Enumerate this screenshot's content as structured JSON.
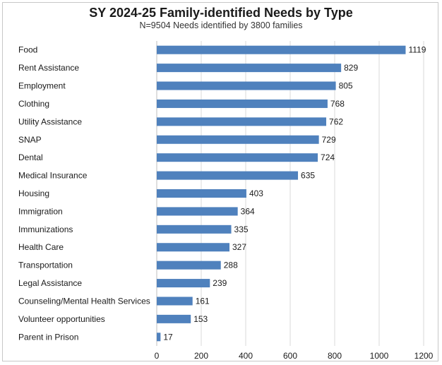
{
  "chart_data": {
    "type": "bar",
    "orientation": "horizontal",
    "title": "SY 2024-25 Family-identified Needs by Type",
    "subtitle": "N=9504 Needs identified by 3800 families",
    "categories": [
      "Food",
      "Rent Assistance",
      "Employment",
      "Clothing",
      "Utility Assistance",
      "SNAP",
      "Dental",
      "Medical Insurance",
      "Housing",
      "Immigration",
      "Immunizations",
      "Health Care",
      "Transportation",
      "Legal Assistance",
      "Counseling/Mental Health Services",
      "Volunteer opportunities",
      "Parent in Prison"
    ],
    "values": [
      1119,
      829,
      805,
      768,
      762,
      729,
      724,
      635,
      403,
      364,
      335,
      327,
      288,
      239,
      161,
      153,
      17
    ],
    "xticks": [
      "0",
      "200",
      "400",
      "600",
      "800",
      "1000",
      "1200"
    ],
    "xlim": [
      0,
      1200
    ],
    "grid": "vertical",
    "bar_color": "#4f81bd",
    "grid_color": "#d9d9d9"
  }
}
